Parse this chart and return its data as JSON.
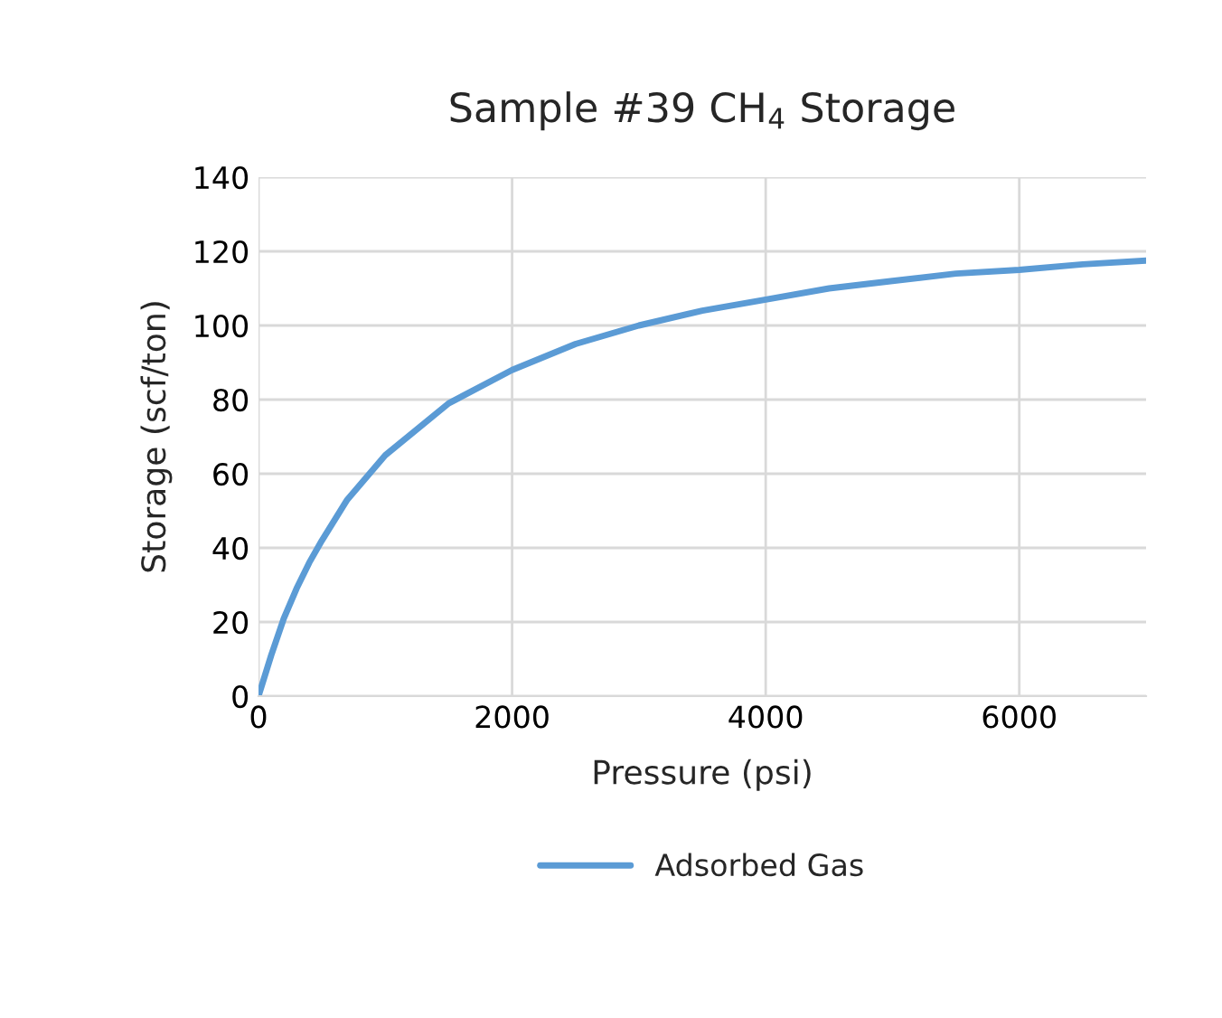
{
  "chart_data": {
    "type": "line",
    "title": "Sample #39 CH$_{4}$ Storage",
    "xlabel": "Pressure (psi)",
    "ylabel": "Storage (scf/ton)",
    "x": [
      0,
      100,
      200,
      300,
      400,
      500,
      700,
      1000,
      1500,
      2000,
      2500,
      3000,
      3500,
      4000,
      4500,
      5000,
      5500,
      6000,
      6500,
      7000
    ],
    "series": [
      {
        "name": "Adsorbed Gas",
        "color": "#5b9bd5",
        "values": [
          0,
          11,
          21,
          29,
          36,
          42,
          53,
          65,
          79,
          88,
          95,
          100,
          104,
          107,
          110,
          112,
          114,
          115,
          116.5,
          117.5
        ]
      }
    ],
    "xlim": [
      0,
      7000
    ],
    "xticks": [
      0,
      2000,
      4000,
      6000
    ],
    "ylim": [
      0,
      140
    ],
    "yticks": [
      0,
      20,
      40,
      60,
      80,
      100,
      120,
      140
    ],
    "grid": true,
    "legend": "bottom",
    "marker": "none",
    "line_style": "solid"
  }
}
